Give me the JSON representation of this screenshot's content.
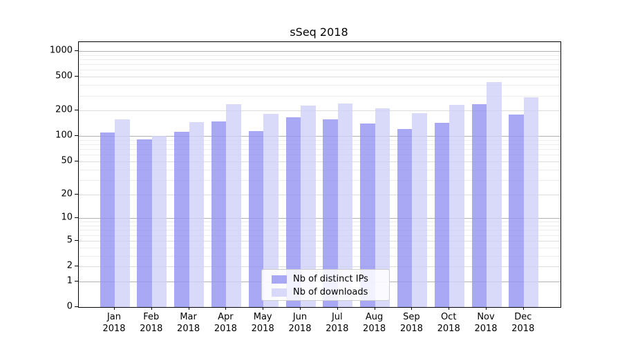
{
  "chart_data": {
    "type": "bar",
    "title": "sSeq 2018",
    "categories": [
      "Jan",
      "Feb",
      "Mar",
      "Apr",
      "May",
      "Jun",
      "Jul",
      "Aug",
      "Sep",
      "Oct",
      "Nov",
      "Dec"
    ],
    "category_year": "2018",
    "series": [
      {
        "name": "Nb of distinct IPs",
        "color": "rgba(146,146,243,0.8)",
        "values": [
          110,
          92,
          112,
          150,
          114,
          167,
          157,
          141,
          122,
          143,
          237,
          179
        ]
      },
      {
        "name": "Nb of downloads",
        "color": "rgba(208,208,249,0.8)",
        "values": [
          158,
          100,
          147,
          240,
          183,
          230,
          244,
          214,
          187,
          232,
          430,
          288
        ]
      }
    ],
    "y_axis": {
      "scale": "log1p",
      "tick_labels": [
        1000,
        500,
        200,
        100,
        50,
        20,
        10,
        5,
        2,
        1,
        0
      ],
      "min": 0,
      "max": 1250
    },
    "xlabel": "",
    "ylabel": "",
    "grid": "on",
    "legend_position": "lower center"
  },
  "colors": {
    "background": "#ffffff",
    "axis": "#000000",
    "grid_major": "#b3b3b3",
    "grid_mid": "#dcdcdc",
    "grid_minor": "#ececec"
  }
}
